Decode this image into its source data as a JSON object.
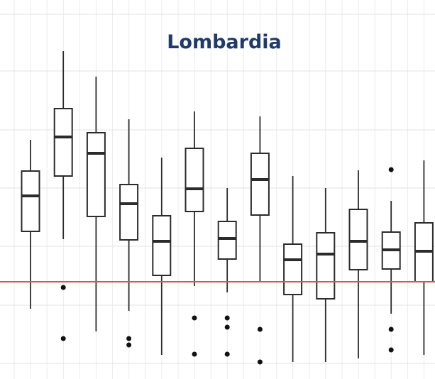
{
  "chart_data": {
    "type": "box",
    "title": "Lombardia",
    "ylim": [
      0,
      534
    ],
    "ygrid": [
      22,
      104,
      187,
      269,
      351,
      434,
      514
    ],
    "grid": true,
    "reference_line": 137,
    "reference_color": "#d9534f",
    "color": "#2b2b2b",
    "boxes": [
      {
        "whisker_high": 337,
        "q3": 293,
        "median": 258,
        "q1": 208,
        "whisker_low": 99,
        "outliers": []
      },
      {
        "whisker_high": 462,
        "q3": 381,
        "median": 341,
        "q1": 286,
        "whisker_low": 197,
        "outliers": [
          129,
          57
        ]
      },
      {
        "whisker_high": 426,
        "q3": 347,
        "median": 318,
        "q1": 229,
        "whisker_low": 67,
        "outliers": []
      },
      {
        "whisker_high": 366,
        "q3": 274,
        "median": 247,
        "q1": 196,
        "whisker_low": 96,
        "outliers": [
          57,
          48
        ]
      },
      {
        "whisker_high": 312,
        "q3": 230,
        "median": 194,
        "q1": 146,
        "whisker_low": 34,
        "outliers": []
      },
      {
        "whisker_high": 377,
        "q3": 325,
        "median": 268,
        "q1": 236,
        "whisker_low": 131,
        "outliers": [
          86,
          35
        ]
      },
      {
        "whisker_high": 269,
        "q3": 222,
        "median": 198,
        "q1": 169,
        "whisker_low": 122,
        "outliers": [
          86,
          73,
          35
        ]
      },
      {
        "whisker_high": 370,
        "q3": 318,
        "median": 281,
        "q1": 231,
        "whisker_low": 136,
        "outliers": [
          70,
          24
        ]
      },
      {
        "whisker_high": 286,
        "q3": 190,
        "median": 168,
        "q1": 119,
        "whisker_low": 24,
        "outliers": []
      },
      {
        "whisker_high": 269,
        "q3": 206,
        "median": 176,
        "q1": 113,
        "whisker_low": 24,
        "outliers": []
      },
      {
        "whisker_high": 294,
        "q3": 239,
        "median": 194,
        "q1": 154,
        "whisker_low": 29,
        "outliers": []
      },
      {
        "whisker_high": 251,
        "q3": 207,
        "median": 182,
        "q1": 155,
        "whisker_low": 92,
        "outliers": [
          295,
          70,
          41
        ]
      },
      {
        "whisker_high": 308,
        "q3": 220,
        "median": 180,
        "q1": 137,
        "whisker_low": 34,
        "outliers": []
      }
    ]
  }
}
